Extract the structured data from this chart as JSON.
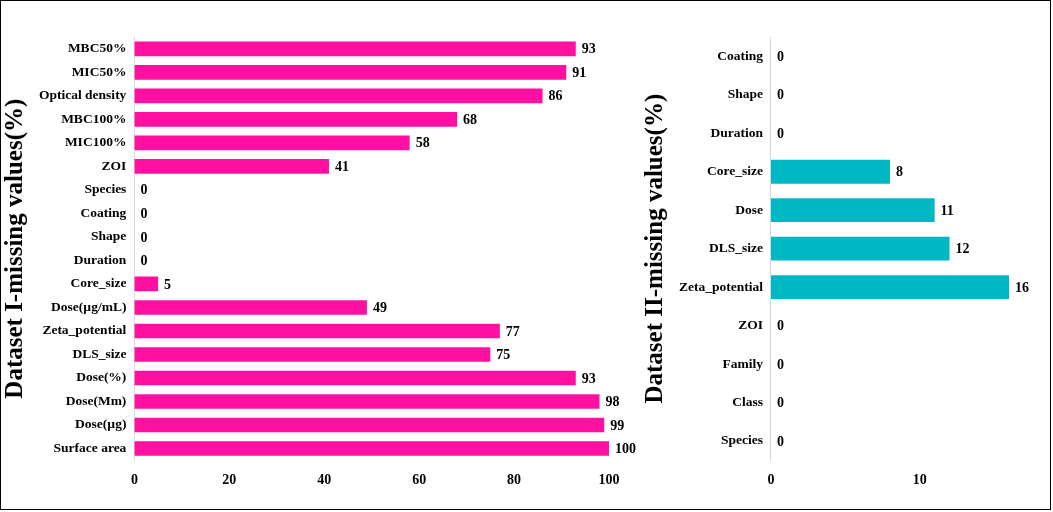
{
  "chart_data": [
    {
      "type": "bar",
      "orientation": "horizontal",
      "ylabel": "Dataset I-missing values(%)",
      "categories": [
        "MBC50%",
        "MIC50%",
        "Optical density",
        "MBC100%",
        "MIC100%",
        "ZOI",
        "Species",
        "Coating",
        "Shape",
        "Duration",
        "Core_size",
        "Dose(µg/mL)",
        "Zeta_potential",
        "DLS_size",
        "Dose(%)",
        "Dose(Mm)",
        "Dose(µg)",
        "Surface area"
      ],
      "values": [
        93,
        91,
        86,
        68,
        58,
        41,
        0,
        0,
        0,
        0,
        5,
        49,
        77,
        75,
        93,
        98,
        99,
        100
      ],
      "color": "#ff10a0",
      "xlim": [
        0,
        100
      ],
      "xticks": [
        0,
        20,
        40,
        60,
        80,
        100
      ],
      "grid": false,
      "legend": false,
      "data_labels": true
    },
    {
      "type": "bar",
      "orientation": "horizontal",
      "ylabel": "Dataset II-missing values(%)",
      "categories": [
        "Coating",
        "Shape",
        "Duration",
        "Core_size",
        "Dose",
        "DLS_size",
        "Zeta_potential",
        "ZOI",
        "Family",
        "Class",
        "Species"
      ],
      "values": [
        0,
        0,
        0,
        8,
        11,
        12,
        16,
        0,
        0,
        0,
        0
      ],
      "color": "#00b8c4",
      "xlim": [
        0,
        16
      ],
      "xticks": [
        0,
        10
      ],
      "grid": false,
      "legend": false,
      "data_labels": true
    }
  ]
}
